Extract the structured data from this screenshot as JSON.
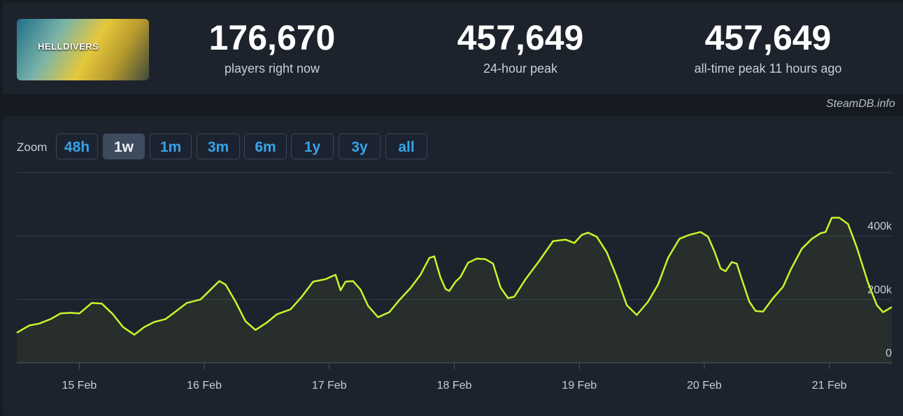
{
  "game": {
    "logo": "HELLDIVERS"
  },
  "stats": [
    {
      "value": "176,670",
      "label": "players right now"
    },
    {
      "value": "457,649",
      "label": "24-hour peak"
    },
    {
      "value": "457,649",
      "label": "all-time peak 11 hours ago"
    }
  ],
  "source": "SteamDB.info",
  "zoom": {
    "label": "Zoom",
    "buttons": [
      "48h",
      "1w",
      "1m",
      "3m",
      "6m",
      "1y",
      "3y",
      "all"
    ],
    "active": "1w"
  },
  "chart_data": {
    "type": "line",
    "x": [
      14.5,
      14.6,
      14.68,
      14.77,
      14.85,
      14.93,
      15.0,
      15.04,
      15.1,
      15.18,
      15.27,
      15.35,
      15.44,
      15.52,
      15.6,
      15.69,
      15.77,
      15.86,
      15.97,
      16.05,
      16.12,
      16.17,
      16.25,
      16.33,
      16.41,
      16.5,
      16.58,
      16.69,
      16.78,
      16.87,
      16.97,
      17.05,
      17.09,
      17.13,
      17.19,
      17.25,
      17.31,
      17.39,
      17.48,
      17.56,
      17.65,
      17.73,
      17.8,
      17.84,
      17.89,
      17.93,
      17.96,
      18.01,
      18.05,
      18.11,
      18.18,
      18.25,
      18.31,
      18.37,
      18.43,
      18.48,
      18.57,
      18.68,
      18.79,
      18.89,
      18.96,
      19.02,
      19.07,
      19.14,
      19.22,
      19.3,
      19.38,
      19.46,
      19.55,
      19.63,
      19.71,
      19.8,
      19.88,
      19.97,
      20.03,
      20.08,
      20.13,
      20.17,
      20.22,
      20.26,
      20.3,
      20.36,
      20.41,
      20.47,
      20.55,
      20.63,
      20.69,
      20.78,
      20.86,
      20.93,
      20.97,
      21.02,
      21.08,
      21.15,
      21.22,
      21.31,
      21.38,
      21.43,
      21.5
    ],
    "series": [
      {
        "name": "Players",
        "color": "#c8f52c",
        "values": [
          95000,
          118000,
          124000,
          138000,
          156000,
          158000,
          156000,
          169000,
          189000,
          187000,
          153000,
          113000,
          89000,
          113000,
          129000,
          138000,
          162000,
          189000,
          200000,
          231000,
          258000,
          247000,
          193000,
          131000,
          104000,
          127000,
          153000,
          169000,
          209000,
          256000,
          264000,
          278000,
          229000,
          256000,
          258000,
          231000,
          180000,
          144000,
          160000,
          198000,
          236000,
          278000,
          331000,
          336000,
          269000,
          233000,
          227000,
          256000,
          271000,
          316000,
          329000,
          327000,
          313000,
          238000,
          204000,
          209000,
          264000,
          322000,
          384000,
          389000,
          378000,
          404000,
          411000,
          398000,
          349000,
          271000,
          182000,
          151000,
          193000,
          247000,
          331000,
          391000,
          404000,
          413000,
          398000,
          353000,
          298000,
          289000,
          318000,
          313000,
          264000,
          193000,
          164000,
          162000,
          204000,
          240000,
          293000,
          360000,
          391000,
          409000,
          413000,
          458000,
          458000,
          438000,
          364000,
          253000,
          182000,
          160000,
          176000
        ]
      }
    ],
    "xlim": [
      14.5,
      21.5
    ],
    "xticks": [
      {
        "value": 15,
        "label": "15 Feb"
      },
      {
        "value": 16,
        "label": "16 Feb"
      },
      {
        "value": 17,
        "label": "17 Feb"
      },
      {
        "value": 18,
        "label": "18 Feb"
      },
      {
        "value": 19,
        "label": "19 Feb"
      },
      {
        "value": 20,
        "label": "20 Feb"
      },
      {
        "value": 21,
        "label": "21 Feb"
      }
    ],
    "ylim": [
      0,
      600000
    ],
    "yticks": [
      0,
      {
        "value": 200000,
        "label": "200k"
      },
      {
        "value": 400000,
        "label": "400k"
      }
    ],
    "grid": true
  }
}
